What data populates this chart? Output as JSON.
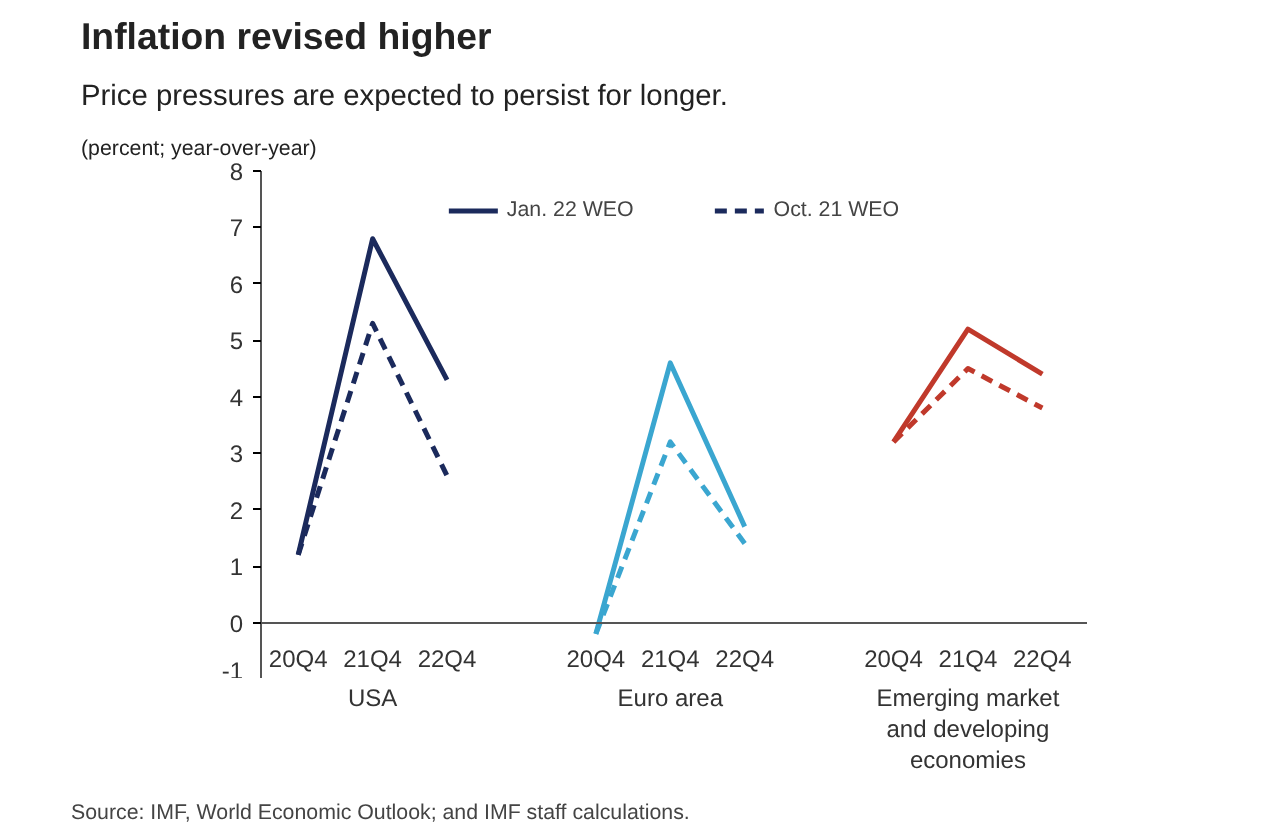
{
  "chart_data": {
    "type": "line",
    "title": "Inflation revised higher",
    "subtitle": "Price pressures are expected to persist for longer.",
    "ylabel": "(percent; year-over-year)",
    "categories": [
      "20Q4",
      "21Q4",
      "22Q4",
      null,
      "20Q4",
      "21Q4",
      "22Q4",
      null,
      "20Q4",
      "21Q4",
      "22Q4"
    ],
    "series": [
      {
        "name": "Jan. 22 WEO",
        "color": "#1b2a5c",
        "line_style": "solid",
        "values": [
          1.2,
          6.8,
          4.3,
          null,
          null,
          null,
          null,
          null,
          null,
          null,
          null
        ]
      },
      {
        "name": "Oct. 21 WEO",
        "color": "#1b2a5c",
        "line_style": "dashed",
        "values": [
          1.2,
          5.3,
          2.6,
          null,
          null,
          null,
          null,
          null,
          null,
          null,
          null
        ]
      },
      {
        "color": "#3aa6d0",
        "line_style": "solid",
        "values": [
          null,
          null,
          null,
          null,
          -0.2,
          4.6,
          1.7,
          null,
          null,
          null,
          null
        ]
      },
      {
        "color": "#3aa6d0",
        "line_style": "dashed",
        "values": [
          null,
          null,
          null,
          null,
          -0.2,
          3.2,
          1.4,
          null,
          null,
          null,
          null
        ]
      },
      {
        "color": "#c0392b",
        "line_style": "solid",
        "values": [
          null,
          null,
          null,
          null,
          null,
          null,
          null,
          null,
          3.2,
          5.2,
          4.4
        ]
      },
      {
        "color": "#c0392b",
        "line_style": "dashed",
        "values": [
          null,
          null,
          null,
          null,
          null,
          null,
          null,
          null,
          3.2,
          4.5,
          3.8
        ]
      }
    ],
    "annotations": [
      "USA",
      "Euro area",
      "Emerging market\nand developing\neconomies",
      "Source: IMF, World Economic Outlook; and IMF staff calculations."
    ],
    "ylim": [
      -1,
      8
    ],
    "yticks": [
      -1,
      0,
      1,
      2,
      3,
      4,
      5,
      6,
      7,
      8
    ],
    "grid": false,
    "legend": "top",
    "marker": "none"
  }
}
